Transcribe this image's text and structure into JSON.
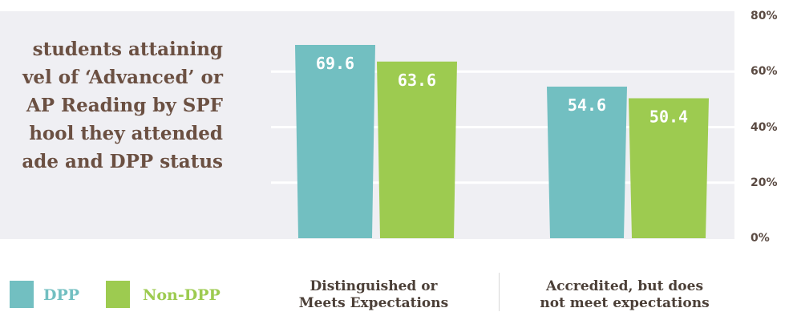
{
  "title_lines": [
    "students attaining",
    "vel of ‘Advanced’ or",
    "AP Reading by SPF",
    "hool they attended",
    "ade and DPP status"
  ],
  "colors": {
    "dpp": "#72bfc1",
    "non_dpp": "#9dcb50",
    "background": "#efeff3",
    "title": "#6b5042"
  },
  "legend": {
    "dpp_label": "DPP",
    "non_dpp_label": "Non-DPP"
  },
  "chart_data": {
    "type": "bar",
    "categories": [
      "Distinguished or Meets Expectations",
      "Accredited, but does not meet expectations"
    ],
    "category_lines": [
      [
        "Distinguished or",
        "Meets Expectations"
      ],
      [
        "Accredited, but does",
        "not meet expectations"
      ]
    ],
    "series": [
      {
        "name": "DPP",
        "values": [
          69.6,
          54.6
        ],
        "labels": [
          "69.6",
          "54.6"
        ]
      },
      {
        "name": "Non-DPP",
        "values": [
          63.6,
          50.4
        ],
        "labels": [
          "63.6",
          "50.4"
        ]
      }
    ],
    "ylim": [
      0,
      80
    ],
    "yticks": [
      "0%",
      "20%",
      "40%",
      "60%",
      "80%"
    ],
    "grid": true,
    "legend_position": "bottom-left"
  }
}
